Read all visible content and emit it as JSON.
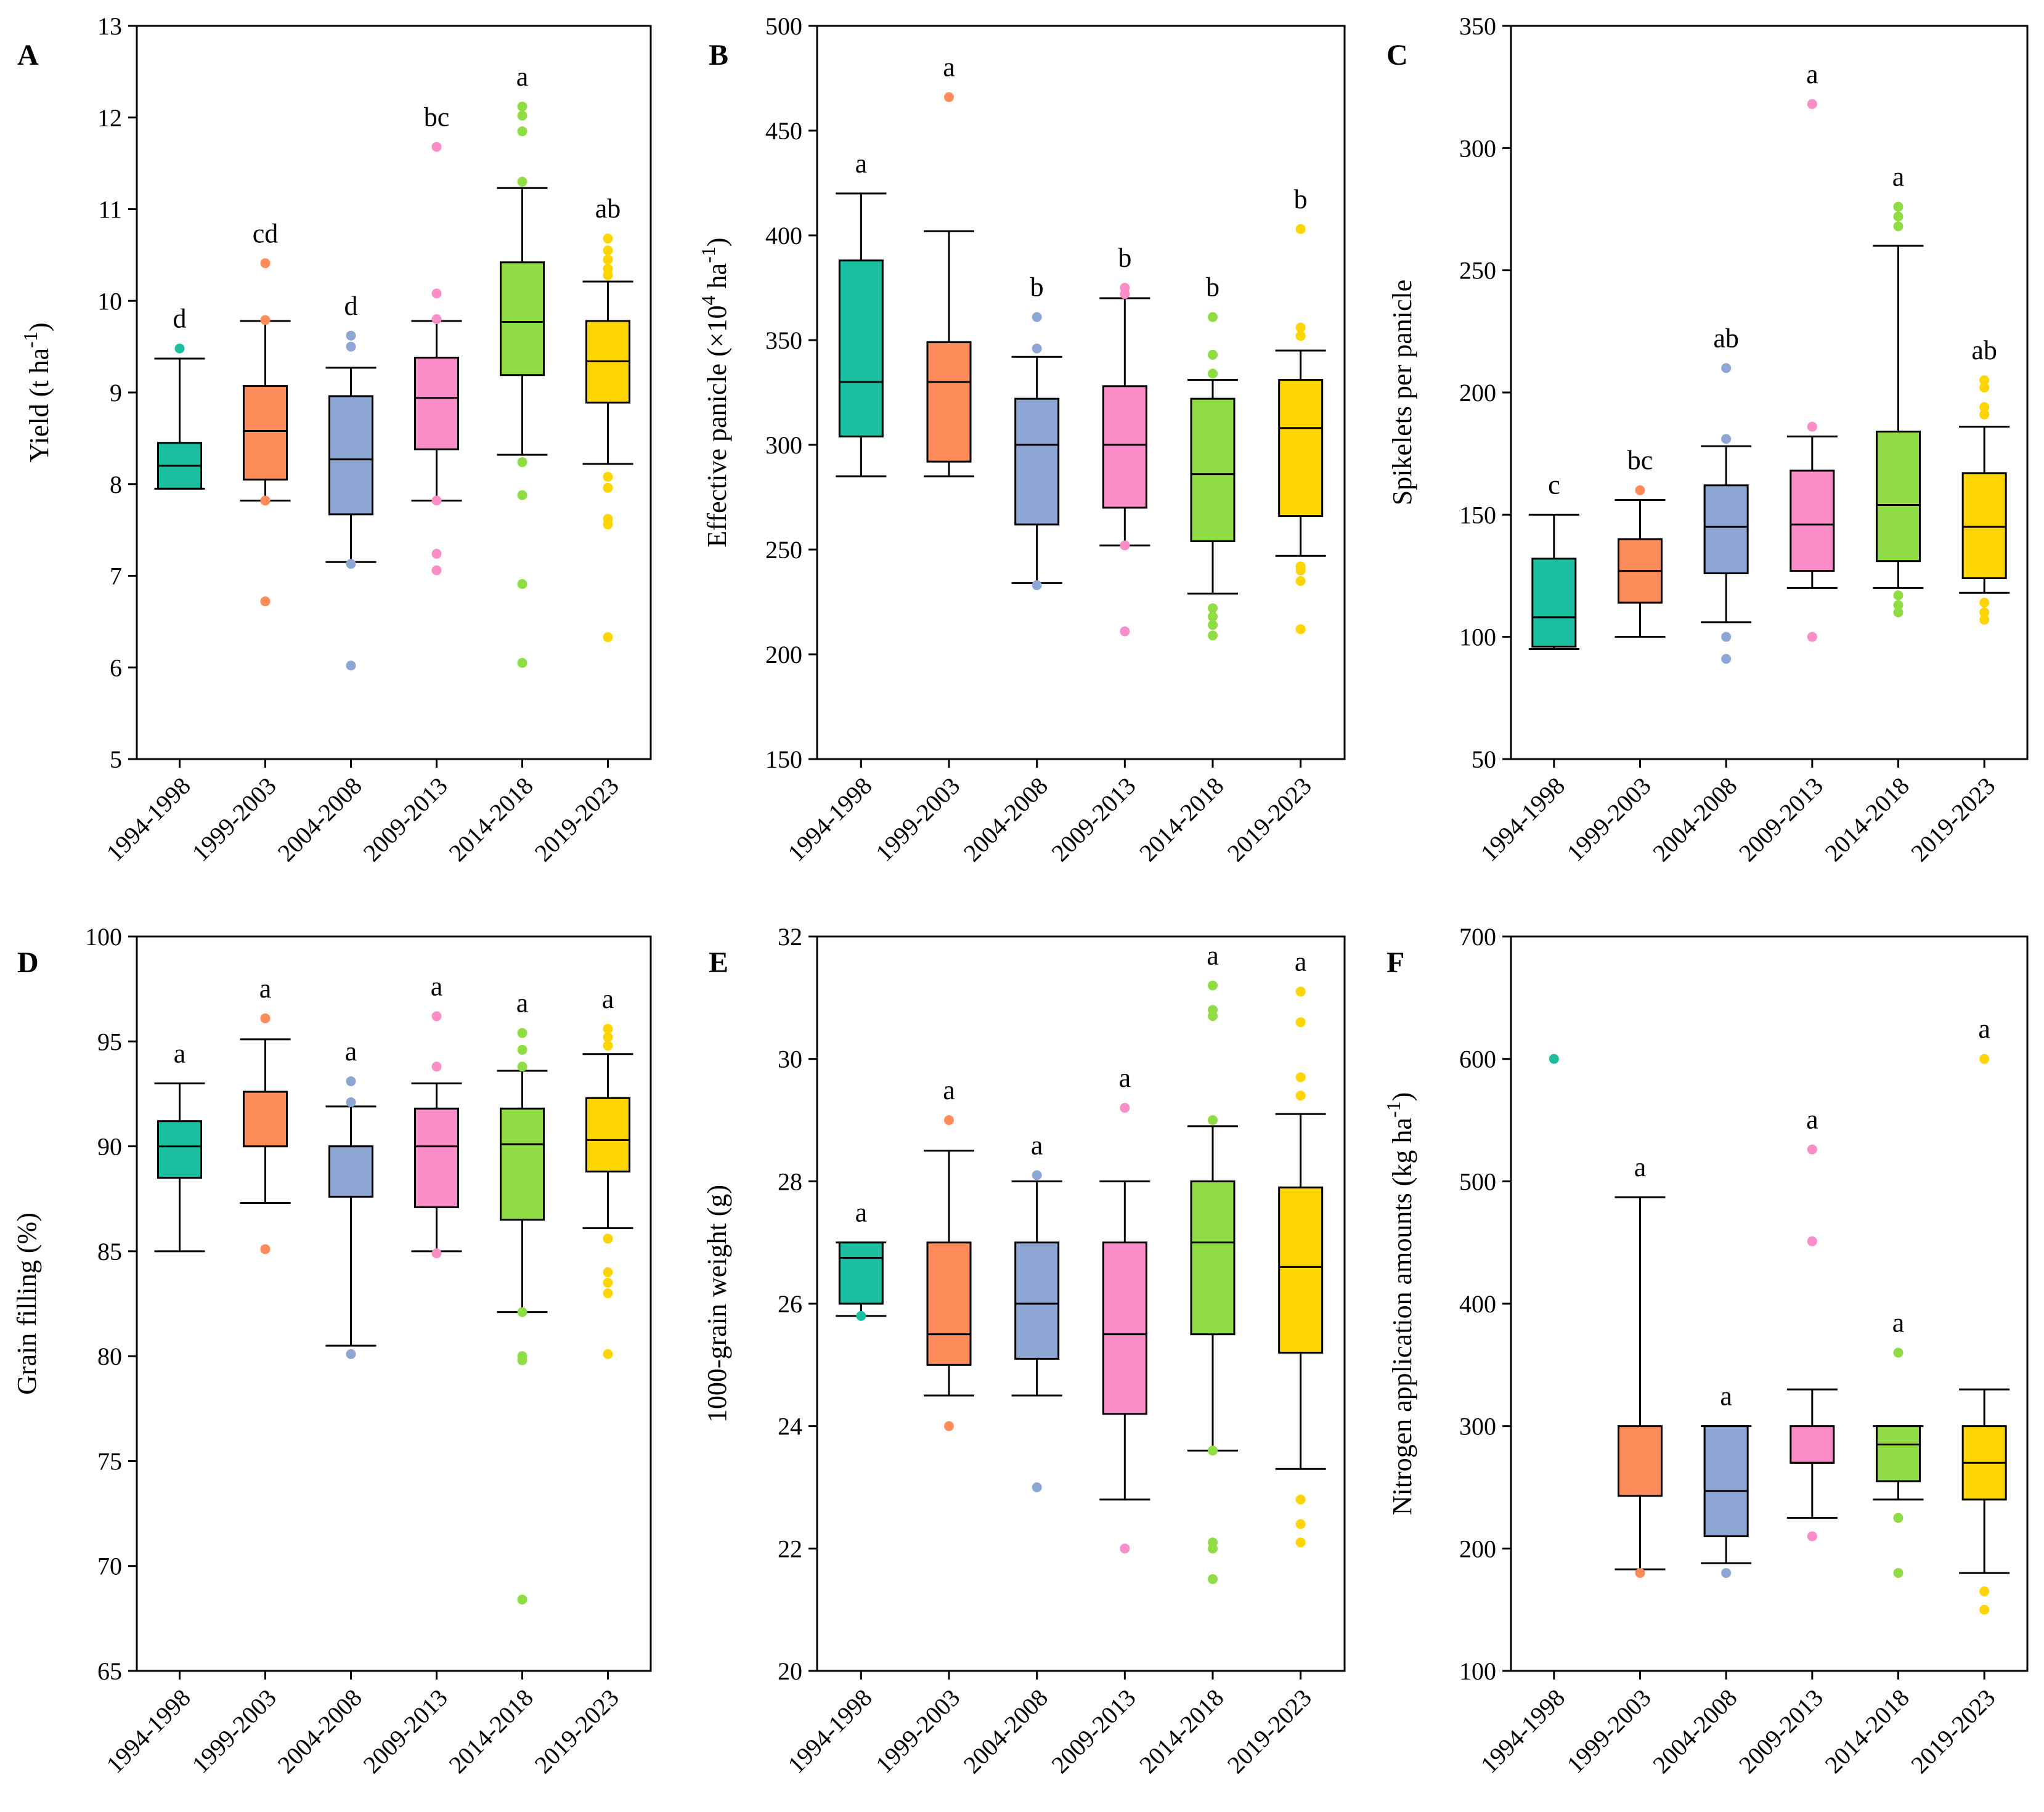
{
  "categories": [
    "1994-1998",
    "1999-2003",
    "2004-2008",
    "2009-2013",
    "2014-2018",
    "2019-2023"
  ],
  "colors": [
    "#1bbfa0",
    "#ff8c5a",
    "#8ea6d3",
    "#fb8ec8",
    "#8fdc44",
    "#ffd500"
  ],
  "chart_data": [
    {
      "panel": "A",
      "type": "box",
      "ylabel": "Yield (t ha",
      "ylabel_sup": "-1",
      "ylabel_suffix": ")",
      "ylim": [
        5,
        13
      ],
      "yticks": [
        5,
        6,
        7,
        8,
        9,
        10,
        11,
        12,
        13
      ],
      "boxes": [
        {
          "q1": 7.95,
          "median": 8.2,
          "q3": 8.45,
          "wlo": 7.95,
          "whi": 9.37,
          "outliers": [
            9.48
          ],
          "sig": "d"
        },
        {
          "q1": 8.05,
          "median": 8.58,
          "q3": 9.07,
          "wlo": 7.82,
          "whi": 9.78,
          "outliers": [
            10.41,
            9.79,
            7.82,
            6.72
          ],
          "sig": "cd"
        },
        {
          "q1": 7.67,
          "median": 8.27,
          "q3": 8.96,
          "wlo": 7.15,
          "whi": 9.27,
          "outliers": [
            9.62,
            9.5,
            7.13,
            6.02
          ],
          "sig": "d"
        },
        {
          "q1": 8.38,
          "median": 8.94,
          "q3": 9.38,
          "wlo": 7.82,
          "whi": 9.78,
          "outliers": [
            11.68,
            10.08,
            9.8,
            7.82,
            7.24,
            7.06
          ],
          "sig": "bc"
        },
        {
          "q1": 9.19,
          "median": 9.77,
          "q3": 10.42,
          "wlo": 8.32,
          "whi": 11.23,
          "outliers": [
            12.12,
            12.02,
            11.85,
            11.3,
            8.24,
            7.88,
            6.91,
            6.05
          ],
          "sig": "a"
        },
        {
          "q1": 8.89,
          "median": 9.34,
          "q3": 9.78,
          "wlo": 8.22,
          "whi": 10.21,
          "outliers": [
            10.68,
            10.55,
            10.45,
            10.35,
            10.28,
            8.08,
            7.96,
            7.62,
            7.56,
            6.33
          ],
          "sig": "ab"
        }
      ]
    },
    {
      "panel": "B",
      "type": "box",
      "ylabel": "Effective panicle (×10",
      "ylabel_sup": "4",
      "ylabel_mid": " ha",
      "ylabel_sup2": "-1",
      "ylabel_suffix": ")",
      "ylim": [
        150,
        500
      ],
      "yticks": [
        150,
        200,
        250,
        300,
        350,
        400,
        450,
        500
      ],
      "boxes": [
        {
          "q1": 304,
          "median": 330,
          "q3": 388,
          "wlo": 285,
          "whi": 420,
          "outliers": [],
          "sig": "a"
        },
        {
          "q1": 292,
          "median": 330,
          "q3": 349,
          "wlo": 285,
          "whi": 402,
          "outliers": [
            466
          ],
          "sig": "a"
        },
        {
          "q1": 262,
          "median": 300,
          "q3": 322,
          "wlo": 234,
          "whi": 342,
          "outliers": [
            361,
            346,
            233
          ],
          "sig": "b"
        },
        {
          "q1": 270,
          "median": 300,
          "q3": 328,
          "wlo": 252,
          "whi": 370,
          "outliers": [
            375,
            372,
            252,
            211
          ],
          "sig": "b"
        },
        {
          "q1": 254,
          "median": 286,
          "q3": 322,
          "wlo": 229,
          "whi": 331,
          "outliers": [
            361,
            343,
            334,
            222,
            218,
            214,
            209
          ],
          "sig": "b"
        },
        {
          "q1": 266,
          "median": 308,
          "q3": 331,
          "wlo": 247,
          "whi": 345,
          "outliers": [
            403,
            356,
            352,
            242,
            240,
            235,
            212
          ],
          "sig": "b"
        }
      ]
    },
    {
      "panel": "C",
      "type": "box",
      "ylabel": "Spikelets per panicle",
      "ylim": [
        50,
        350
      ],
      "yticks": [
        50,
        100,
        150,
        200,
        250,
        300,
        350
      ],
      "boxes": [
        {
          "q1": 96,
          "median": 108,
          "q3": 132,
          "wlo": 95,
          "whi": 150,
          "outliers": [],
          "sig": "c"
        },
        {
          "q1": 114,
          "median": 127,
          "q3": 140,
          "wlo": 100,
          "whi": 156,
          "outliers": [
            160
          ],
          "sig": "bc"
        },
        {
          "q1": 126,
          "median": 145,
          "q3": 162,
          "wlo": 106,
          "whi": 178,
          "outliers": [
            210,
            181,
            100,
            91
          ],
          "sig": "ab"
        },
        {
          "q1": 127,
          "median": 146,
          "q3": 168,
          "wlo": 120,
          "whi": 182,
          "outliers": [
            318,
            186,
            100
          ],
          "sig": "a"
        },
        {
          "q1": 131,
          "median": 154,
          "q3": 184,
          "wlo": 120,
          "whi": 260,
          "outliers": [
            276,
            272,
            268,
            117,
            113,
            110
          ],
          "sig": "a"
        },
        {
          "q1": 124,
          "median": 145,
          "q3": 167,
          "wlo": 118,
          "whi": 186,
          "outliers": [
            205,
            202,
            194,
            191,
            114,
            110,
            107
          ],
          "sig": "ab"
        }
      ]
    },
    {
      "panel": "D",
      "type": "box",
      "ylabel": "Grain filling (%)",
      "ylim": [
        65,
        100
      ],
      "yticks": [
        65,
        70,
        75,
        80,
        85,
        90,
        95,
        100
      ],
      "boxes": [
        {
          "q1": 88.5,
          "median": 90,
          "q3": 91.2,
          "wlo": 85,
          "whi": 93,
          "outliers": [],
          "sig": "a"
        },
        {
          "q1": 90,
          "median": 90,
          "q3": 92.6,
          "wlo": 87.3,
          "whi": 95.1,
          "outliers": [
            96.1,
            85.1
          ],
          "sig": "a"
        },
        {
          "q1": 87.6,
          "median": 90,
          "q3": 90,
          "wlo": 80.5,
          "whi": 91.9,
          "outliers": [
            93.1,
            92.1,
            80.1
          ],
          "sig": "a"
        },
        {
          "q1": 87.1,
          "median": 90,
          "q3": 91.8,
          "wlo": 85,
          "whi": 93,
          "outliers": [
            96.2,
            93.8,
            84.9
          ],
          "sig": "a"
        },
        {
          "q1": 86.5,
          "median": 90.1,
          "q3": 91.8,
          "wlo": 82.1,
          "whi": 93.6,
          "outliers": [
            95.4,
            94.6,
            93.8,
            82.1,
            80,
            79.8,
            68.4
          ],
          "sig": "a"
        },
        {
          "q1": 88.8,
          "median": 90.3,
          "q3": 92.3,
          "wlo": 86.1,
          "whi": 94.4,
          "outliers": [
            95.6,
            95.2,
            94.8,
            85.6,
            84,
            83.5,
            83,
            80.1
          ],
          "sig": "a"
        }
      ]
    },
    {
      "panel": "E",
      "type": "box",
      "ylabel": "1000-grain weight (g)",
      "ylim": [
        20,
        32
      ],
      "yticks": [
        20,
        22,
        24,
        26,
        28,
        30,
        32
      ],
      "boxes": [
        {
          "q1": 26,
          "median": 26.75,
          "q3": 27,
          "wlo": 25.8,
          "whi": 27,
          "outliers": [
            25.8
          ],
          "sig": "a"
        },
        {
          "q1": 25,
          "median": 25.5,
          "q3": 27,
          "wlo": 24.5,
          "whi": 28.5,
          "outliers": [
            29,
            24
          ],
          "sig": "a"
        },
        {
          "q1": 25.1,
          "median": 26,
          "q3": 27,
          "wlo": 24.5,
          "whi": 28,
          "outliers": [
            28.1,
            23
          ],
          "sig": "a"
        },
        {
          "q1": 24.2,
          "median": 25.5,
          "q3": 27,
          "wlo": 22.8,
          "whi": 28,
          "outliers": [
            29.2,
            22
          ],
          "sig": "a"
        },
        {
          "q1": 25.5,
          "median": 27,
          "q3": 28,
          "wlo": 23.6,
          "whi": 28.9,
          "outliers": [
            31.2,
            30.8,
            30.7,
            29,
            23.6,
            22.1,
            22,
            21.5
          ],
          "sig": "a"
        },
        {
          "q1": 25.2,
          "median": 26.6,
          "q3": 27.9,
          "wlo": 23.3,
          "whi": 29.1,
          "outliers": [
            31.1,
            30.6,
            29.7,
            29.4,
            22.8,
            22.4,
            22.1
          ],
          "sig": "a"
        }
      ]
    },
    {
      "panel": "F",
      "type": "box",
      "ylabel": "Nitrogen application amounts (kg ha",
      "ylabel_sup": "-1",
      "ylabel_suffix": ")",
      "ylim": [
        100,
        700
      ],
      "yticks": [
        100,
        200,
        300,
        400,
        500,
        600,
        700
      ],
      "boxes": [
        {
          "empty": true,
          "q1": null,
          "median": null,
          "q3": null,
          "wlo": null,
          "whi": null,
          "outliers": [
            600
          ],
          "sig": ""
        },
        {
          "q1": 243,
          "median": 243,
          "q3": 300,
          "wlo": 183,
          "whi": 487,
          "outliers": [
            180
          ],
          "sig": "a"
        },
        {
          "q1": 210,
          "median": 247,
          "q3": 300,
          "wlo": 188,
          "whi": 300,
          "outliers": [
            180
          ],
          "sig": "a"
        },
        {
          "q1": 270,
          "median": 270,
          "q3": 300,
          "wlo": 225,
          "whi": 330,
          "outliers": [
            526,
            451,
            210
          ],
          "sig": "a"
        },
        {
          "q1": 255,
          "median": 285,
          "q3": 300,
          "wlo": 240,
          "whi": 300,
          "outliers": [
            360,
            225,
            180
          ],
          "sig": "a"
        },
        {
          "q1": 240,
          "median": 270,
          "q3": 300,
          "wlo": 180,
          "whi": 330,
          "outliers": [
            600,
            165,
            150
          ],
          "sig": "a"
        }
      ]
    }
  ]
}
